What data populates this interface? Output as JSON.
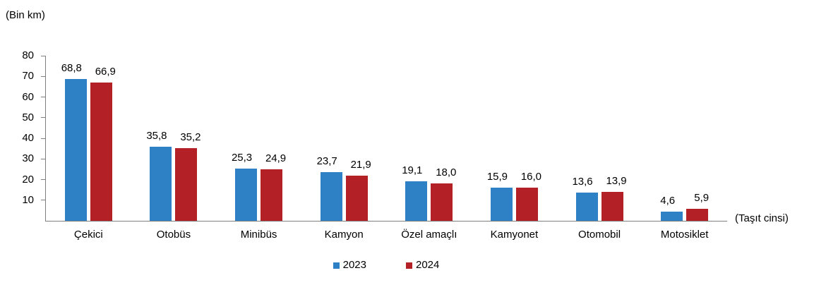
{
  "chart_data": {
    "type": "bar",
    "title": "",
    "unit_label": "(Bin km)",
    "xlabel": "(Taşıt cinsi)",
    "categories": [
      "Çekici",
      "Otobüs",
      "Minibüs",
      "Kamyon",
      "Özel amaçlı",
      "Kamyonet",
      "Otomobil",
      "Motosiklet"
    ],
    "series": [
      {
        "name": "2023",
        "color": "#2e81c4",
        "values": [
          68.8,
          35.8,
          25.3,
          23.7,
          19.1,
          15.9,
          13.6,
          4.6
        ],
        "labels": [
          "68,8",
          "35,8",
          "25,3",
          "23,7",
          "19,1",
          "15,9",
          "13,6",
          "4,6"
        ]
      },
      {
        "name": "2024",
        "color": "#b32025",
        "values": [
          66.9,
          35.2,
          24.9,
          21.9,
          18.0,
          16.0,
          13.9,
          5.9
        ],
        "labels": [
          "66,9",
          "35,2",
          "24,9",
          "21,9",
          "18,0",
          "16,0",
          "13,9",
          "5,9"
        ]
      }
    ],
    "ylim": [
      0,
      80
    ],
    "yticks": [
      10,
      20,
      30,
      40,
      50,
      60,
      70,
      80
    ],
    "grid": false,
    "legend_position": "bottom-center",
    "axis_color": "#7f7f7f",
    "text_color": "#000000"
  }
}
